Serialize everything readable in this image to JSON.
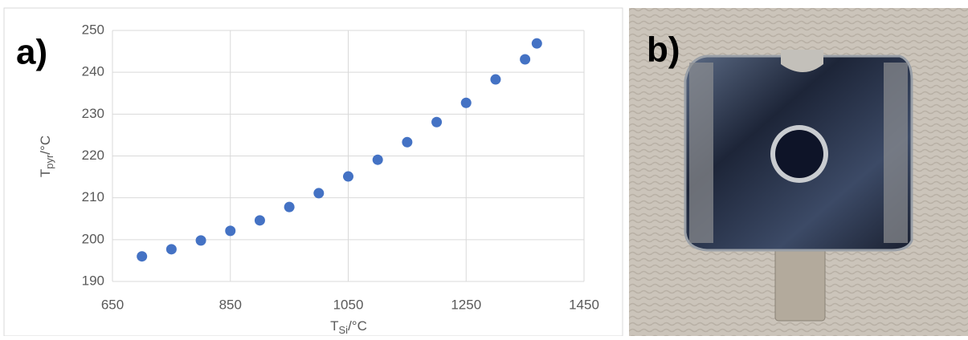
{
  "chart_data": {
    "type": "scatter",
    "panel_label": "a)",
    "x_label": {
      "main": "T",
      "sub": "Si",
      "unit": "/°C"
    },
    "y_label": {
      "main": "T",
      "sub": "pyr",
      "unit": "/°C"
    },
    "x": [
      700,
      750,
      800,
      850,
      900,
      950,
      1000,
      1050,
      1100,
      1150,
      1200,
      1250,
      1300,
      1350,
      1370
    ],
    "values": [
      196,
      197.7,
      199.8,
      202.1,
      204.6,
      207.8,
      211.1,
      215.1,
      219.1,
      223.3,
      228.1,
      232.7,
      238.3,
      243.1,
      246.9
    ],
    "color": "#4472c4",
    "xlim": [
      650,
      1450
    ],
    "xticks": [
      650,
      850,
      1050,
      1250,
      1450
    ],
    "ylim": [
      190,
      250
    ],
    "yticks": [
      190,
      200,
      210,
      220,
      230,
      240,
      250
    ],
    "grid": true
  },
  "photo": {
    "panel_label": "b)"
  }
}
